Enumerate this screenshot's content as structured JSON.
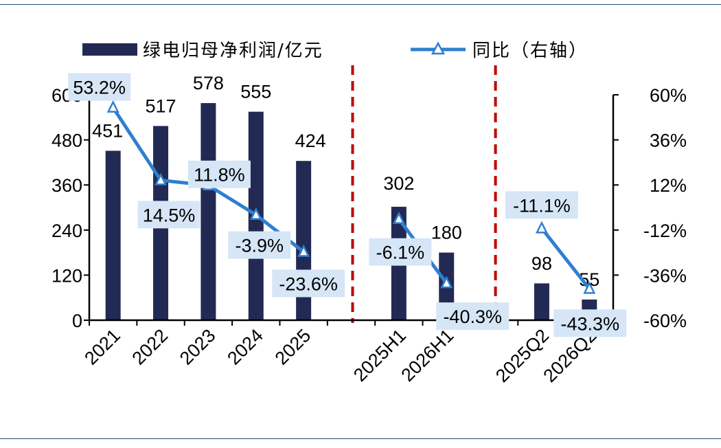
{
  "chart_data": {
    "type": "bar",
    "categories": [
      "2021",
      "2022",
      "2023",
      "2024",
      "2025",
      "2025H1",
      "2026H1",
      "2025Q2",
      "2026Q2"
    ],
    "series": [
      {
        "name": "绿电归母净利润/亿元",
        "type": "bar",
        "axis": "left",
        "values": [
          451,
          517,
          578,
          555,
          424,
          302,
          180,
          98,
          55
        ],
        "labels": [
          "451",
          "517",
          "578",
          "555",
          "424",
          "302",
          "180",
          "98",
          "55"
        ]
      },
      {
        "name": "同比（右轴）",
        "type": "line",
        "axis": "right",
        "segments": [
          [
            0,
            1,
            2,
            3,
            4
          ],
          [
            5,
            6
          ],
          [
            7,
            8
          ]
        ],
        "values": [
          53.2,
          14.5,
          11.8,
          -3.9,
          -23.6,
          -6.1,
          -40.3,
          -11.1,
          -43.3
        ],
        "labels": [
          "53.2%",
          "14.5%",
          "11.8%",
          "-3.9%",
          "-23.6%",
          "-6.1%",
          "-40.3%",
          "-11.1%",
          "-43.3%"
        ]
      }
    ],
    "left_axis": {
      "ylim": [
        0,
        600
      ],
      "ticks": [
        "0",
        "120",
        "240",
        "360",
        "480",
        "600"
      ]
    },
    "right_axis": {
      "ylim": [
        -60,
        60
      ],
      "ticks": [
        "-60%",
        "-36%",
        "-12%",
        "12%",
        "36%",
        "60%"
      ]
    },
    "legend_position": "top",
    "colors": {
      "bar": "#222a54",
      "line": "#2f7fd0",
      "marker_fill": "#ffffff",
      "label_box": "#d6e6f6",
      "divider": "#c00000"
    }
  }
}
